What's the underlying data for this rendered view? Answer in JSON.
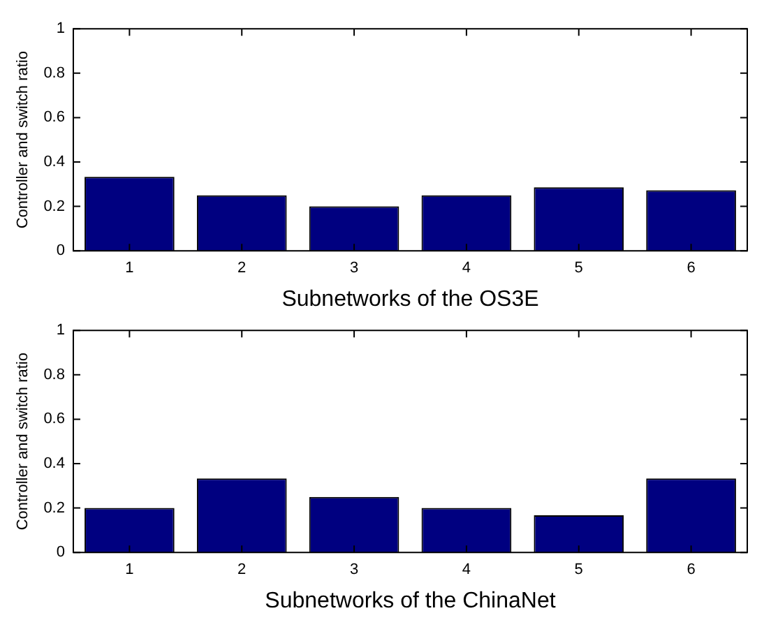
{
  "chart_data": [
    {
      "type": "bar",
      "xlabel": "Subnetworks of the OS3E",
      "ylabel": "Controller and switch ratio",
      "categories": [
        "1",
        "2",
        "3",
        "4",
        "5",
        "6"
      ],
      "values": [
        0.333,
        0.25,
        0.2,
        0.25,
        0.286,
        0.273
      ],
      "color": "#000080",
      "ylim": [
        0,
        1
      ],
      "yticks": [
        0,
        0.2,
        0.4,
        0.6,
        0.8,
        1
      ],
      "grid": false,
      "legend": false
    },
    {
      "type": "bar",
      "xlabel": "Subnetworks of the ChinaNet",
      "ylabel": "Controller and switch ratio",
      "categories": [
        "1",
        "2",
        "3",
        "4",
        "5",
        "6"
      ],
      "values": [
        0.2,
        0.333,
        0.25,
        0.2,
        0.167,
        0.333
      ],
      "color": "#000080",
      "ylim": [
        0,
        1
      ],
      "yticks": [
        0,
        0.2,
        0.4,
        0.6,
        0.8,
        1
      ],
      "grid": false,
      "legend": false
    }
  ]
}
